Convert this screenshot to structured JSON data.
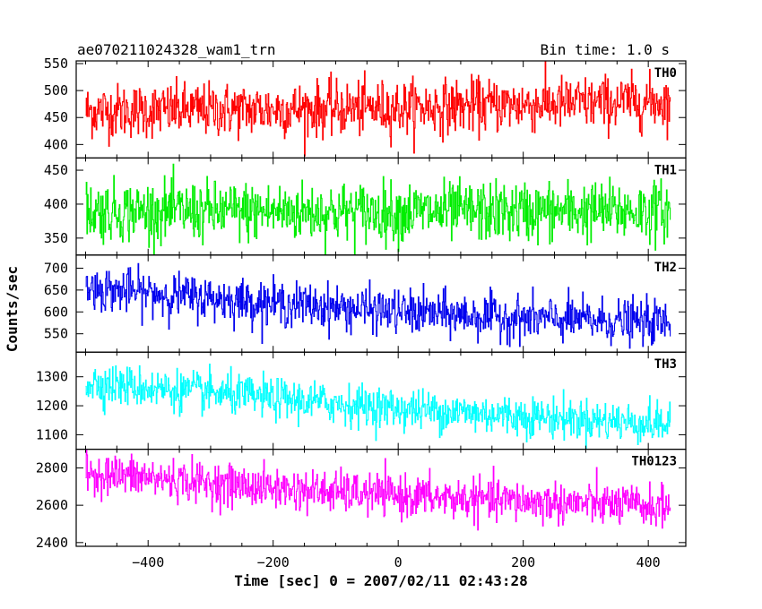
{
  "chart_data": {
    "type": "line",
    "title_left": "ae070211024328_wam1_trn",
    "title_right": "Bin time: 1.0 s",
    "xlabel": "Time [sec] 0 = 2007/02/11 02:43:28",
    "ylabel": "Counts/sec",
    "xlim": [
      -515,
      460
    ],
    "x_range": [
      -500,
      435
    ],
    "x_ticks": [
      -400,
      -200,
      0,
      200,
      400
    ],
    "x_tick_labels": [
      "−400",
      "−200",
      "0",
      "200",
      "400"
    ],
    "grid": false,
    "panels": [
      {
        "label": "TH0",
        "color": "#ff0000",
        "ylim": [
          375,
          555
        ],
        "y_ticks": [
          400,
          450,
          500,
          550
        ],
        "y_tick_labels": [
          "400",
          "450",
          "500",
          "550"
        ],
        "trend": [
          [
            -500,
            462
          ],
          [
            -200,
            465
          ],
          [
            0,
            468
          ],
          [
            200,
            474
          ],
          [
            435,
            480
          ]
        ],
        "noise_sd": 25
      },
      {
        "label": "TH1",
        "color": "#00ee00",
        "ylim": [
          325,
          468
        ],
        "y_ticks": [
          350,
          400,
          450
        ],
        "y_tick_labels": [
          "350",
          "400",
          "450"
        ],
        "trend": [
          [
            -500,
            390
          ],
          [
            0,
            388
          ],
          [
            435,
            390
          ]
        ],
        "noise_sd": 22
      },
      {
        "label": "TH2",
        "color": "#0000ee",
        "ylim": [
          508,
          730
        ],
        "y_ticks": [
          550,
          600,
          650,
          700
        ],
        "y_tick_labels": [
          "550",
          "600",
          "650",
          "700"
        ],
        "trend": [
          [
            -500,
            655
          ],
          [
            -250,
            625
          ],
          [
            0,
            600
          ],
          [
            200,
            585
          ],
          [
            435,
            575
          ]
        ],
        "noise_sd": 25
      },
      {
        "label": "TH3",
        "color": "#00ffff",
        "ylim": [
          1050,
          1385
        ],
        "y_ticks": [
          1100,
          1200,
          1300
        ],
        "y_tick_labels": [
          "1100",
          "1200",
          "1300"
        ],
        "trend": [
          [
            -500,
            1280
          ],
          [
            -200,
            1225
          ],
          [
            0,
            1190
          ],
          [
            200,
            1165
          ],
          [
            435,
            1135
          ]
        ],
        "noise_sd": 35
      },
      {
        "label": "TH0123",
        "color": "#ff00ff",
        "ylim": [
          2380,
          2900
        ],
        "y_ticks": [
          2400,
          2600,
          2800
        ],
        "y_tick_labels": [
          "2400",
          "2600",
          "2800"
        ],
        "trend": [
          [
            -500,
            2775
          ],
          [
            -200,
            2690
          ],
          [
            0,
            2650
          ],
          [
            200,
            2620
          ],
          [
            435,
            2590
          ]
        ],
        "noise_sd": 55
      }
    ]
  }
}
